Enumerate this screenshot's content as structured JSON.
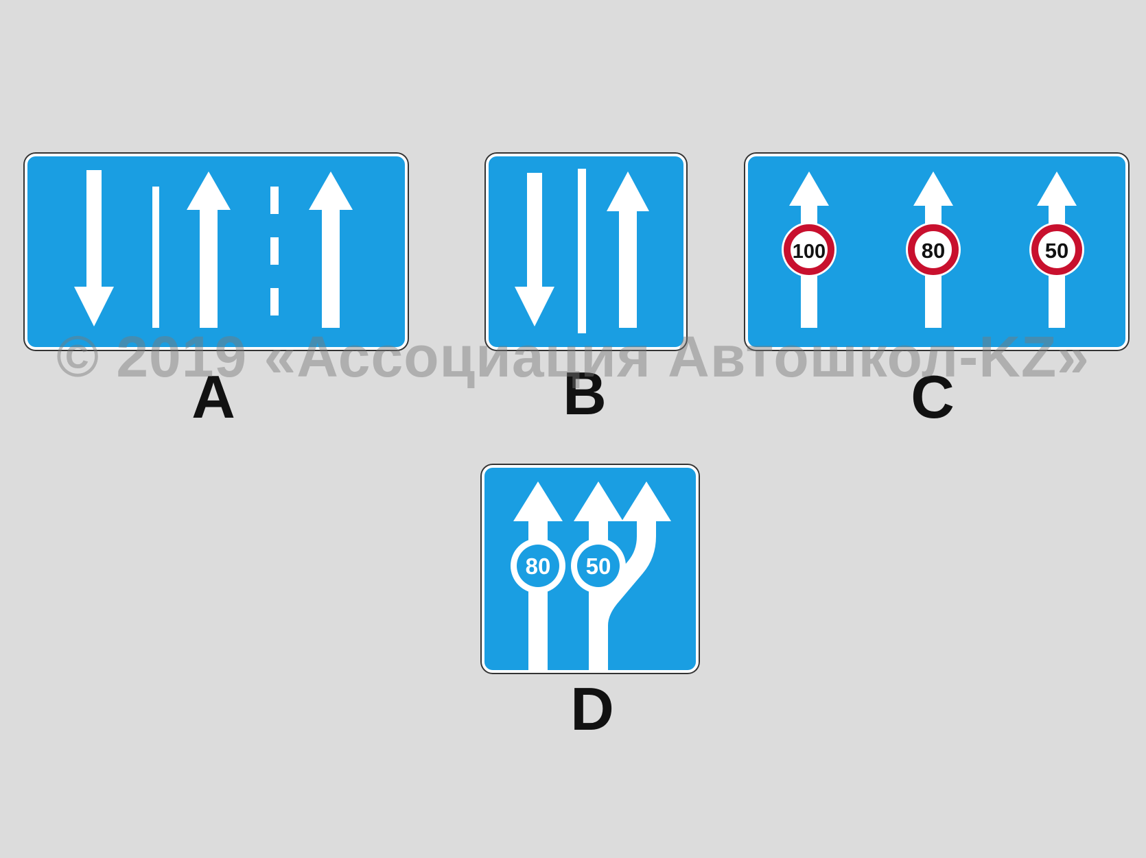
{
  "signs": [
    {
      "id": "A",
      "label": "A"
    },
    {
      "id": "B",
      "label": "B"
    },
    {
      "id": "C",
      "label": "C",
      "speed_limits": [
        "100",
        "80",
        "50"
      ]
    },
    {
      "id": "D",
      "label": "D",
      "speed_limits": [
        "80",
        "50"
      ]
    }
  ],
  "watermark": "© 2019 «Ассоциация Автошкол-KZ»",
  "colors": {
    "sign_blue": "#1a9ee2",
    "marking_white": "#ffffff",
    "limit_red": "#c8102e",
    "background": "#dcdcdc"
  }
}
